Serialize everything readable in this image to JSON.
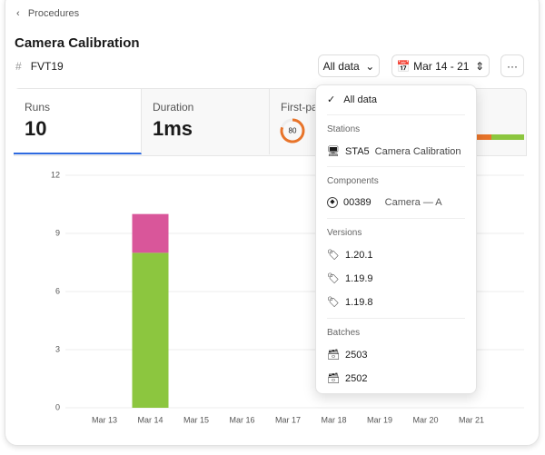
{
  "breadcrumb": "Procedures",
  "title": "Camera Calibration",
  "tag": "FVT19",
  "filters": {
    "data": "All data",
    "dates": "Mar 14 - 21"
  },
  "stats": [
    {
      "label": "Runs",
      "value": 10
    },
    {
      "label": "Duration",
      "value": "1ms"
    },
    {
      "label": "First-pass",
      "value": 80
    }
  ],
  "menu": {
    "selected": "All data",
    "groups": [
      {
        "title": "Stations",
        "items": [
          {
            "label": "STA5",
            "detail": "Camera Calibration"
          }
        ]
      },
      {
        "title": "Components",
        "items": [
          {
            "label": "00389",
            "detail": "Camera — A"
          }
        ]
      },
      {
        "title": "Versions",
        "items": [
          {
            "label": "1.20.1"
          },
          {
            "label": "1.19.9"
          },
          {
            "label": "1.19.8"
          }
        ]
      },
      {
        "title": "Batches",
        "items": [
          {
            "label": "2503"
          },
          {
            "label": "2502"
          }
        ]
      }
    ]
  },
  "chart_data": {
    "type": "bar",
    "stacked": true,
    "categories": [
      "Mar 13",
      "Mar 14",
      "Mar 15",
      "Mar 16",
      "Mar 17",
      "Mar 18",
      "Mar 19",
      "Mar 20",
      "Mar 21"
    ],
    "series": [
      {
        "color": "#8cc63f",
        "values": [
          0,
          8,
          0,
          0,
          0,
          0,
          0,
          0,
          0
        ]
      },
      {
        "color": "#d9569a",
        "values": [
          0,
          2,
          0,
          0,
          0,
          0,
          0,
          0,
          0
        ]
      }
    ],
    "ylim": [
      0,
      12
    ],
    "yticks": [
      0,
      3,
      6,
      9,
      12
    ],
    "grid": true
  }
}
